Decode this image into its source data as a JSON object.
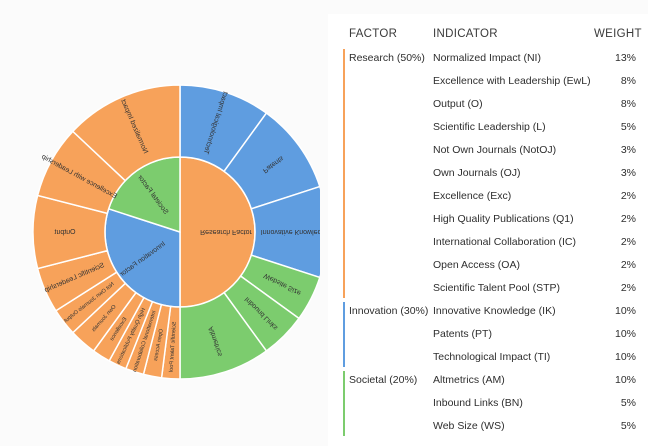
{
  "headers": {
    "factor": "FACTOR",
    "indicator": "INDICATOR",
    "weight": "WEIGHT"
  },
  "groups": [
    {
      "factor": "Research (50%)",
      "color": "#f7a25a",
      "indicators": [
        {
          "name": "Normalized Impact (NI)",
          "weight": "13%"
        },
        {
          "name": "Excellence with Leadership (EwL)",
          "weight": "8%"
        },
        {
          "name": "Output (O)",
          "weight": "8%"
        },
        {
          "name": "Scientific Leadership (L)",
          "weight": "5%"
        },
        {
          "name": "Not Own Journals (NotOJ)",
          "weight": "3%"
        },
        {
          "name": "Own Journals (OJ)",
          "weight": "3%"
        },
        {
          "name": "Excellence (Exc)",
          "weight": "2%"
        },
        {
          "name": "High Quality Publications (Q1)",
          "weight": "2%"
        },
        {
          "name": "International Collaboration (IC)",
          "weight": "2%"
        },
        {
          "name": "Open Access (OA)",
          "weight": "2%"
        },
        {
          "name": "Scientific Talent Pool (STP)",
          "weight": "2%"
        }
      ]
    },
    {
      "factor": "Innovation (30%)",
      "color": "#5f9de0",
      "indicators": [
        {
          "name": "Innovative Knowledge (IK)",
          "weight": "10%"
        },
        {
          "name": "Patents (PT)",
          "weight": "10%"
        },
        {
          "name": "Technological Impact (TI)",
          "weight": "10%"
        }
      ]
    },
    {
      "factor": "Societal (20%)",
      "color": "#7ccc6e",
      "indicators": [
        {
          "name": "Altmetrics (AM)",
          "weight": "10%"
        },
        {
          "name": "Inbound Links (BN)",
          "weight": "5%"
        },
        {
          "name": "Web Size (WS)",
          "weight": "5%"
        }
      ]
    }
  ],
  "chart_data": {
    "type": "sunburst",
    "inner": [
      {
        "label": "Research Factor",
        "value": 50,
        "color": "#f7a25a"
      },
      {
        "label": "Innovation Factor",
        "value": 30,
        "color": "#5f9de0"
      },
      {
        "label": "Societal Factor",
        "value": 20,
        "color": "#7ccc6e"
      }
    ],
    "outer": [
      {
        "label": "Technological Impact",
        "value": 10,
        "parent": "Innovation Factor"
      },
      {
        "label": "Patents",
        "value": 10,
        "parent": "Innovation Factor"
      },
      {
        "label": "Innovative Knowledge",
        "value": 10,
        "parent": "Innovation Factor"
      },
      {
        "label": "Website Size",
        "value": 5,
        "parent": "Societal Factor"
      },
      {
        "label": "Inbound Links",
        "value": 5,
        "parent": "Societal Factor"
      },
      {
        "label": "Altmetrics",
        "value": 10,
        "parent": "Societal Factor"
      },
      {
        "label": "Scientific Talent Pool",
        "value": 2,
        "parent": "Research Factor"
      },
      {
        "label": "Open Access",
        "value": 2,
        "parent": "Research Factor"
      },
      {
        "label": "International Collaboration",
        "value": 2,
        "parent": "Research Factor"
      },
      {
        "label": "High Quality Publications",
        "value": 2,
        "parent": "Research Factor"
      },
      {
        "label": "Excellence",
        "value": 2,
        "parent": "Research Factor"
      },
      {
        "label": "Own Journals",
        "value": 3,
        "parent": "Research Factor"
      },
      {
        "label": "Not Own Journals Output",
        "value": 3,
        "parent": "Research Factor"
      },
      {
        "label": "Scientific Leadership",
        "value": 5,
        "parent": "Research Factor"
      },
      {
        "label": "Output",
        "value": 8,
        "parent": "Research Factor"
      },
      {
        "label": "Excellence with Leadership",
        "value": 8,
        "parent": "Research Factor"
      },
      {
        "label": "Normalized Impact",
        "value": 13,
        "parent": "Research Factor"
      }
    ]
  }
}
